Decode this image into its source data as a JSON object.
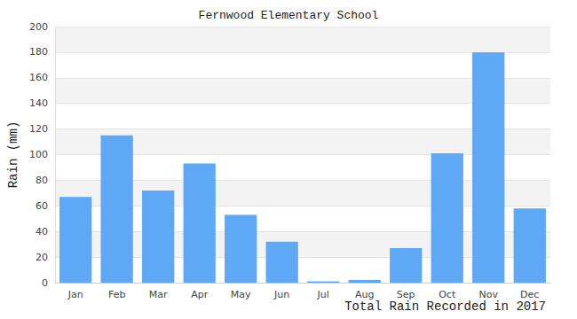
{
  "chart_data": {
    "type": "bar",
    "title": "Fernwood Elementary School",
    "xlabel": "Total Rain Recorded in 2017",
    "ylabel": "Rain (mm)",
    "categories": [
      "Jan",
      "Feb",
      "Mar",
      "Apr",
      "May",
      "Jun",
      "Jul",
      "Aug",
      "Sep",
      "Oct",
      "Nov",
      "Dec"
    ],
    "values": [
      67,
      115,
      72,
      93,
      53,
      32,
      1,
      2,
      27,
      101,
      180,
      58
    ],
    "color": "#5ea8f5",
    "ylim": [
      0,
      200
    ],
    "yticks": [
      0,
      20,
      40,
      60,
      80,
      100,
      120,
      140,
      160,
      180,
      200
    ],
    "grid": true
  }
}
